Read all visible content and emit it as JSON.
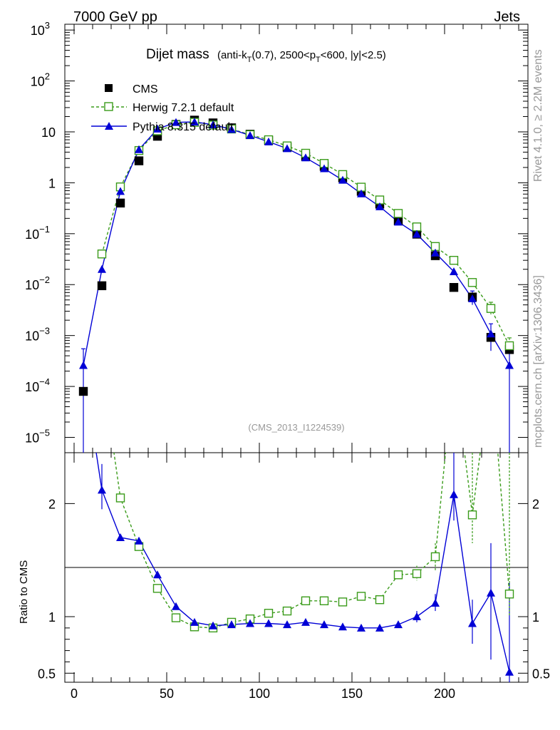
{
  "header": {
    "left": "7000 GeV pp",
    "right": "Jets"
  },
  "title": {
    "main": "Dijet mass",
    "sub": "(anti-k_T(0.7), 2500<p_T<600, |y|<2.5)"
  },
  "watermark": "(CMS_2013_I1224539)",
  "side_right_top": "Rivet 4.1.0, ≥ 2.2M events",
  "side_right_bottom": "mcplots.cern.ch [arXiv:1306.3436]",
  "ratio_ylabel": "Ratio to CMS",
  "legend": [
    "CMS",
    "Herwig 7.2.1 default",
    "Pythia 8.315 default"
  ],
  "colors": {
    "cms": "#000000",
    "herwig": "#3a9b1a",
    "pythia": "#0000d6"
  },
  "chart_data": [
    {
      "type": "scatter",
      "panel": "main",
      "yscale": "log",
      "xlim": [
        -5,
        245
      ],
      "ylim": [
        5e-06,
        1300
      ],
      "ytick_labels": [
        "10^-5",
        "10^-4",
        "10^-3",
        "10^-2",
        "10^-1",
        "1",
        "10",
        "10^2",
        "10^3"
      ],
      "x": [
        5,
        15,
        25,
        35,
        45,
        55,
        65,
        75,
        85,
        95,
        105,
        115,
        125,
        135,
        145,
        155,
        165,
        175,
        185,
        195,
        205,
        215,
        225,
        235
      ],
      "series": [
        {
          "name": "CMS",
          "values": [
            8e-05,
            0.0095,
            0.4,
            2.7,
            8.2,
            14,
            17,
            15,
            12,
            9.0,
            6.8,
            5.0,
            3.3,
            2.1,
            1.25,
            0.68,
            0.38,
            0.18,
            0.098,
            0.037,
            0.0088,
            0.0057,
            0.00092,
            0.00053
          ]
        },
        {
          "name": "Herwig 7.2.1 default",
          "values": [
            null,
            0.04,
            0.83,
            4.3,
            10.5,
            13.8,
            15.4,
            13.6,
            11.4,
            8.8,
            7.0,
            5.3,
            3.8,
            2.4,
            1.45,
            0.82,
            0.46,
            0.25,
            0.136,
            0.056,
            0.03,
            0.011,
            0.0034,
            0.00063
          ]
        },
        {
          "name": "Pythia 8.315 default",
          "values": [
            0.00026,
            0.02,
            0.68,
            4.5,
            11.4,
            15.4,
            15.7,
            13.8,
            11.2,
            8.5,
            6.4,
            4.7,
            3.1,
            1.9,
            1.13,
            0.61,
            0.34,
            0.17,
            0.098,
            0.042,
            0.018,
            0.0053,
            0.00108,
            0.00026
          ]
        }
      ]
    },
    {
      "type": "line",
      "panel": "ratio",
      "xlim": [
        -5,
        245
      ],
      "ylim": [
        0.42,
        2.45
      ],
      "x_tick_labels": [
        "0",
        "50",
        "100",
        "150",
        "200"
      ],
      "y_tick_labels": [
        "0.5",
        "1",
        "2"
      ],
      "x": [
        5,
        15,
        25,
        35,
        45,
        55,
        65,
        75,
        85,
        95,
        105,
        115,
        125,
        135,
        145,
        155,
        165,
        175,
        185,
        195,
        205,
        215,
        225,
        235
      ],
      "series": [
        {
          "name": "Herwig 7.2.1 default",
          "values": [
            null,
            null,
            2.05,
            1.62,
            1.25,
            0.99,
            0.91,
            0.9,
            0.95,
            0.98,
            1.03,
            1.05,
            1.14,
            1.14,
            1.13,
            1.18,
            1.15,
            1.37,
            1.38,
            1.53,
            null,
            1.9,
            null,
            1.2
          ]
        },
        {
          "name": "Pythia 8.315 default",
          "values": [
            null,
            2.12,
            1.7,
            1.67,
            1.37,
            1.09,
            0.95,
            0.92,
            0.93,
            0.94,
            0.94,
            0.93,
            0.95,
            0.93,
            0.91,
            0.9,
            0.9,
            0.93,
            1.0,
            1.12,
            2.08,
            0.94,
            1.21,
            0.51
          ]
        }
      ]
    }
  ]
}
